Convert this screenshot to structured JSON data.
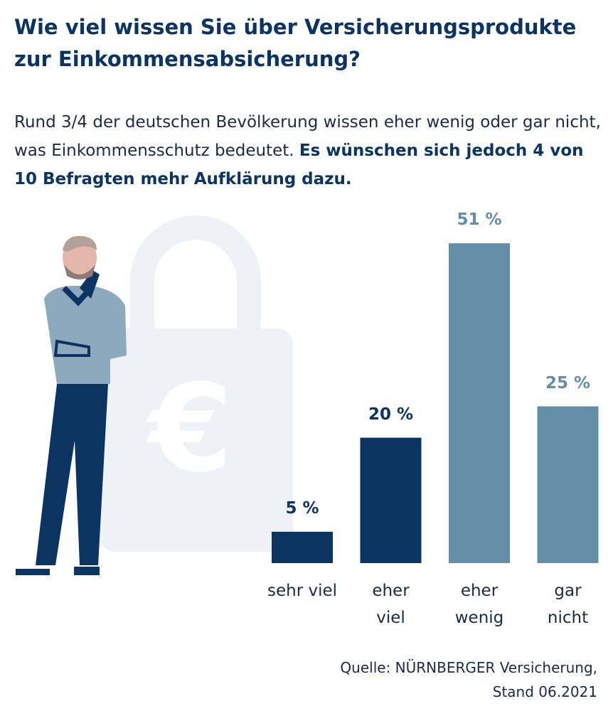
{
  "chart_data": {
    "type": "bar",
    "title": "Wie viel wissen Sie über Versicherungsprodukte zur Einkommensabsicherung?",
    "subtitle": "Rund 3/4 der deutschen Bevölkerung wissen eher wenig oder gar nicht, was Einkommensschutz bedeutet.",
    "subtitle_emphasis": "Es wünschen sich jedoch 4 von 10 Befragten mehr Aufklärung dazu.",
    "categories": [
      "sehr viel",
      "eher viel",
      "eher wenig",
      "gar nicht"
    ],
    "values": [
      5,
      20,
      51,
      25
    ],
    "value_labels": [
      "5 %",
      "20 %",
      "51 %",
      "25 %"
    ],
    "colors": [
      "#0b3463",
      "#0b3463",
      "#648ea6",
      "#648ea6"
    ],
    "source": "Quelle: NÜRNBERGER Versicherung, Stand 06.2021"
  }
}
